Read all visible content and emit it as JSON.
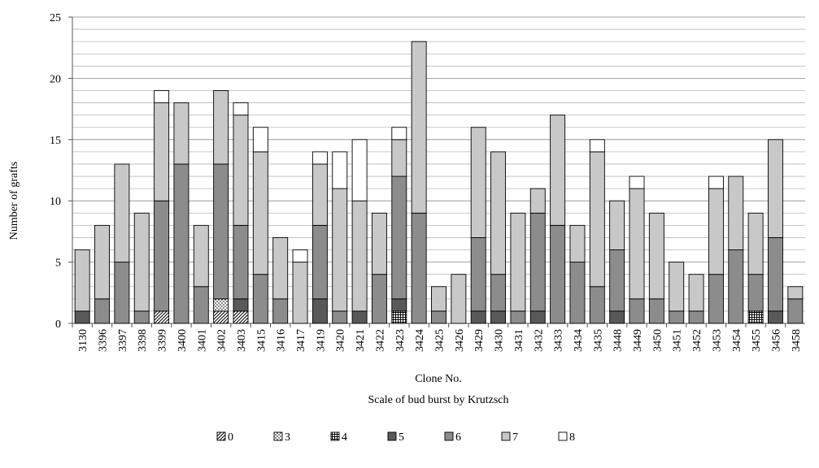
{
  "chart_data": {
    "type": "bar",
    "stacked": true,
    "title": "",
    "xlabel": "Clone No.",
    "xlabel2": "Scale of bud burst by Krutzsch",
    "ylabel": "Number of grafts",
    "ylim": [
      0,
      25
    ],
    "yticks": [
      "0",
      "5",
      "10",
      "15",
      "20",
      "25"
    ],
    "grid": true,
    "legend_position": "bottom",
    "categories": [
      "3130",
      "3396",
      "3397",
      "3398",
      "3399",
      "3400",
      "3401",
      "3402",
      "3403",
      "3415",
      "3416",
      "3417",
      "3419",
      "3420",
      "3421",
      "3422",
      "3423",
      "3424",
      "3425",
      "3426",
      "3429",
      "3430",
      "3431",
      "3432",
      "3433",
      "3434",
      "3435",
      "3448",
      "3449",
      "3450",
      "3451",
      "3452",
      "3453",
      "3454",
      "3455",
      "3456",
      "3458"
    ],
    "series": [
      {
        "name": "0",
        "fill": "hatch-diagonal",
        "values": [
          0,
          0,
          0,
          0,
          1,
          0,
          0,
          1,
          1,
          0,
          0,
          0,
          0,
          0,
          0,
          0,
          0,
          0,
          0,
          0,
          0,
          0,
          0,
          0,
          0,
          0,
          0,
          0,
          0,
          0,
          0,
          0,
          0,
          0,
          0,
          0,
          0
        ]
      },
      {
        "name": "3",
        "fill": "dots",
        "values": [
          0,
          0,
          0,
          0,
          0,
          0,
          0,
          1,
          0,
          0,
          0,
          0,
          0,
          0,
          0,
          0,
          0,
          0,
          0,
          0,
          0,
          0,
          0,
          0,
          0,
          0,
          0,
          0,
          0,
          0,
          0,
          0,
          0,
          0,
          0,
          0,
          0
        ]
      },
      {
        "name": "4",
        "fill": "grid",
        "values": [
          0,
          0,
          0,
          0,
          0,
          0,
          0,
          0,
          0,
          0,
          0,
          0,
          0,
          0,
          0,
          0,
          1,
          0,
          0,
          0,
          0,
          0,
          0,
          0,
          0,
          0,
          0,
          0,
          0,
          0,
          0,
          0,
          0,
          0,
          1,
          0,
          0
        ]
      },
      {
        "name": "5",
        "fill": "#595959",
        "values": [
          1,
          0,
          0,
          0,
          0,
          0,
          0,
          0,
          1,
          0,
          0,
          0,
          2,
          0,
          1,
          0,
          1,
          0,
          0,
          0,
          1,
          1,
          0,
          1,
          0,
          0,
          0,
          1,
          0,
          0,
          0,
          0,
          0,
          0,
          0,
          1,
          0
        ]
      },
      {
        "name": "6",
        "fill": "#8c8c8c",
        "values": [
          0,
          2,
          5,
          1,
          9,
          13,
          3,
          11,
          6,
          4,
          2,
          0,
          6,
          1,
          0,
          4,
          10,
          9,
          1,
          0,
          6,
          3,
          1,
          8,
          8,
          5,
          3,
          5,
          2,
          2,
          1,
          1,
          4,
          6,
          3,
          6,
          2
        ]
      },
      {
        "name": "7",
        "fill": "#c8c8c8",
        "values": [
          5,
          6,
          8,
          8,
          8,
          5,
          5,
          6,
          9,
          10,
          5,
          5,
          5,
          10,
          9,
          5,
          3,
          14,
          2,
          4,
          9,
          10,
          8,
          2,
          9,
          3,
          11,
          4,
          9,
          7,
          4,
          3,
          7,
          6,
          5,
          8,
          1
        ]
      },
      {
        "name": "8",
        "fill": "#ffffff",
        "values": [
          0,
          0,
          0,
          0,
          1,
          0,
          0,
          0,
          1,
          2,
          0,
          1,
          1,
          3,
          5,
          0,
          1,
          0,
          0,
          0,
          0,
          0,
          0,
          0,
          0,
          0,
          1,
          0,
          1,
          0,
          0,
          0,
          1,
          0,
          0,
          0,
          0
        ]
      }
    ]
  }
}
